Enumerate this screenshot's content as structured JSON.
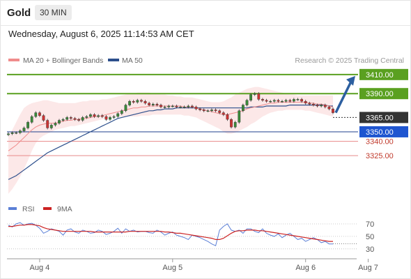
{
  "header": {
    "symbol": "Gold",
    "timeframe": "30 MIN"
  },
  "datetime": "Wednesday, August 6, 2025 11:14:53 AM CET",
  "legend": {
    "ma20_label": "MA 20 + Bollinger Bands",
    "ma50_label": "MA 50",
    "credit": "Research © 2025 Trading Central"
  },
  "colors": {
    "ma20": "#f08c8c",
    "ma50": "#2c4f8c",
    "resistance": "#5aa020",
    "support": "#1f3f8c",
    "support_minor": "#e88a8a",
    "current": "#333333",
    "rsi": "#5b7fd6",
    "rsi_ma": "#cc2222",
    "band_fill": "#fce4e4",
    "candle_up": "#3a8a3a",
    "candle_down": "#cc3333"
  },
  "rsi_legend": {
    "rsi_label": "RSI",
    "ma_label": "9MA"
  },
  "chart_data": {
    "type": "candlestick",
    "price_levels": [
      {
        "value": 3410,
        "label": "3410.00",
        "kind": "resistance"
      },
      {
        "value": 3390,
        "label": "3390.00",
        "kind": "resistance"
      },
      {
        "value": 3365,
        "label": "3365.00",
        "kind": "current"
      },
      {
        "value": 3350,
        "label": "3350.00",
        "kind": "support"
      },
      {
        "value": 3340,
        "label": "3340.00",
        "kind": "support-minor"
      },
      {
        "value": 3325,
        "label": "3325.00",
        "kind": "support-minor"
      }
    ],
    "ylim": [
      3282,
      3415
    ],
    "x_ticks": [
      {
        "label": "Aug 4",
        "index": 8
      },
      {
        "label": "Aug 5",
        "index": 42
      },
      {
        "label": "Aug 6",
        "index": 76
      },
      {
        "label": "Aug 7",
        "index": 92
      }
    ],
    "close": [
      3348,
      3349,
      3349,
      3351,
      3354,
      3360,
      3366,
      3370,
      3367,
      3362,
      3354,
      3357,
      3359,
      3362,
      3363,
      3365,
      3364,
      3363,
      3362,
      3365,
      3366,
      3368,
      3366,
      3367,
      3366,
      3363,
      3365,
      3366,
      3369,
      3372,
      3378,
      3382,
      3381,
      3383,
      3382,
      3380,
      3378,
      3379,
      3378,
      3376,
      3376,
      3377,
      3377,
      3376,
      3376,
      3376,
      3377,
      3376,
      3374,
      3373,
      3372,
      3372,
      3373,
      3372,
      3370,
      3368,
      3363,
      3355,
      3360,
      3372,
      3378,
      3383,
      3389,
      3390,
      3384,
      3383,
      3382,
      3382,
      3383,
      3382,
      3382,
      3383,
      3382,
      3384,
      3384,
      3382,
      3380,
      3379,
      3378,
      3377,
      3378,
      3376,
      3374,
      3370
    ],
    "ma20": [
      3330,
      3333,
      3336,
      3340,
      3344,
      3348,
      3352,
      3355,
      3357,
      3358,
      3359,
      3359,
      3359,
      3360,
      3361,
      3362,
      3362,
      3363,
      3363,
      3364,
      3364,
      3365,
      3366,
      3366,
      3367,
      3368,
      3369,
      3370,
      3371,
      3372,
      3373,
      3374,
      3375,
      3375,
      3376,
      3376,
      3377,
      3377,
      3377,
      3377,
      3377,
      3377,
      3377,
      3377,
      3377,
      3376,
      3376,
      3376,
      3375,
      3374,
      3373,
      3372,
      3371,
      3370,
      3369,
      3368,
      3368,
      3369,
      3370,
      3371,
      3372,
      3374,
      3375,
      3376,
      3377,
      3378,
      3379,
      3380,
      3380,
      3381,
      3381,
      3381,
      3381,
      3381,
      3381,
      3381,
      3381,
      3380,
      3380,
      3379,
      3379,
      3378,
      3377,
      3376
    ],
    "ma50": [
      3300,
      3302,
      3304,
      3307,
      3310,
      3313,
      3316,
      3319,
      3322,
      3325,
      3328,
      3330,
      3332,
      3334,
      3336,
      3338,
      3340,
      3342,
      3344,
      3346,
      3348,
      3350,
      3352,
      3354,
      3356,
      3358,
      3360,
      3362,
      3364,
      3365,
      3366,
      3367,
      3368,
      3369,
      3370,
      3371,
      3372,
      3372,
      3373,
      3373,
      3374,
      3374,
      3374,
      3375,
      3375,
      3375,
      3375,
      3375,
      3375,
      3375,
      3375,
      3375,
      3375,
      3375,
      3375,
      3375,
      3375,
      3375,
      3375,
      3375,
      3375,
      3375,
      3376,
      3376,
      3376,
      3376,
      3377,
      3377,
      3377,
      3377,
      3377,
      3377,
      3378,
      3378,
      3378,
      3378,
      3378,
      3378,
      3378,
      3378,
      3378,
      3378,
      3377,
      3377
    ],
    "bb_upper": [
      3345,
      3352,
      3360,
      3368,
      3375,
      3378,
      3380,
      3381,
      3382,
      3383,
      3383,
      3382,
      3381,
      3380,
      3380,
      3380,
      3380,
      3380,
      3381,
      3382,
      3382,
      3383,
      3383,
      3383,
      3384,
      3384,
      3385,
      3386,
      3387,
      3388,
      3389,
      3390,
      3390,
      3391,
      3391,
      3391,
      3391,
      3390,
      3390,
      3389,
      3389,
      3388,
      3388,
      3387,
      3387,
      3386,
      3386,
      3386,
      3385,
      3384,
      3383,
      3382,
      3381,
      3381,
      3381,
      3382,
      3384,
      3386,
      3389,
      3391,
      3393,
      3395,
      3396,
      3397,
      3397,
      3396,
      3395,
      3394,
      3393,
      3392,
      3391,
      3390,
      3389,
      3389,
      3388,
      3388,
      3388,
      3388,
      3388,
      3388,
      3388,
      3388,
      3388,
      3388
    ],
    "bb_lower": [
      3285,
      3290,
      3296,
      3303,
      3311,
      3320,
      3330,
      3338,
      3343,
      3346,
      3348,
      3350,
      3352,
      3353,
      3354,
      3355,
      3356,
      3356,
      3357,
      3358,
      3359,
      3360,
      3361,
      3362,
      3363,
      3364,
      3365,
      3366,
      3366,
      3366,
      3366,
      3366,
      3366,
      3366,
      3367,
      3367,
      3367,
      3368,
      3368,
      3368,
      3368,
      3368,
      3368,
      3368,
      3368,
      3367,
      3367,
      3366,
      3365,
      3363,
      3361,
      3359,
      3357,
      3355,
      3353,
      3350,
      3348,
      3348,
      3349,
      3351,
      3353,
      3355,
      3358,
      3360,
      3363,
      3366,
      3368,
      3370,
      3371,
      3372,
      3372,
      3373,
      3373,
      3373,
      3373,
      3373,
      3372,
      3372,
      3371,
      3370,
      3369,
      3368,
      3367,
      3366
    ],
    "rsi": {
      "ticks": [
        70,
        50,
        30
      ],
      "ylim": [
        22,
        80
      ],
      "values": [
        68,
        65,
        70,
        72,
        68,
        70,
        71,
        68,
        63,
        55,
        58,
        62,
        60,
        58,
        52,
        60,
        62,
        57,
        55,
        60,
        58,
        55,
        56,
        60,
        58,
        53,
        55,
        58,
        63,
        55,
        62,
        58,
        60,
        57,
        58,
        58,
        56,
        55,
        60,
        57,
        52,
        55,
        57,
        52,
        50,
        48,
        45,
        52,
        50,
        48,
        45,
        42,
        38,
        35,
        60,
        66,
        70,
        60,
        58,
        60,
        55,
        62,
        62,
        58,
        56,
        62,
        55,
        52,
        50,
        54,
        48,
        52,
        55,
        50,
        45,
        47,
        42,
        45,
        48,
        45,
        40,
        42,
        38,
        38
      ],
      "ma": [
        66,
        66,
        67,
        68,
        68,
        69,
        69,
        68,
        67,
        64,
        62,
        61,
        60,
        59,
        58,
        58,
        58,
        58,
        58,
        58,
        58,
        58,
        57,
        57,
        57,
        57,
        57,
        57,
        57,
        57,
        57,
        58,
        58,
        58,
        58,
        58,
        58,
        58,
        58,
        58,
        57,
        57,
        56,
        55,
        55,
        54,
        53,
        52,
        51,
        50,
        49,
        48,
        47,
        45,
        45,
        47,
        51,
        55,
        58,
        59,
        59,
        60,
        60,
        60,
        59,
        59,
        58,
        57,
        56,
        55,
        54,
        53,
        52,
        51,
        50,
        49,
        48,
        47,
        46,
        45,
        44,
        43,
        42,
        42
      ]
    }
  }
}
